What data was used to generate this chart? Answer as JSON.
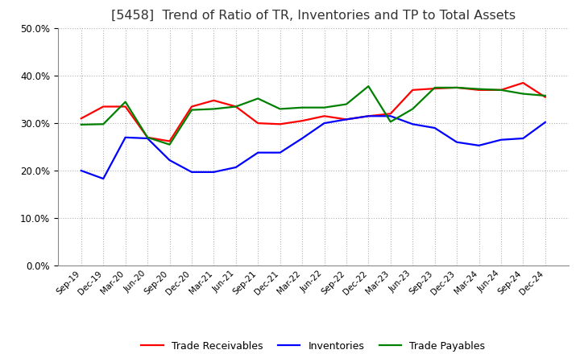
{
  "title": "[5458]  Trend of Ratio of TR, Inventories and TP to Total Assets",
  "labels": [
    "Sep-19",
    "Dec-19",
    "Mar-20",
    "Jun-20",
    "Sep-20",
    "Dec-20",
    "Mar-21",
    "Jun-21",
    "Sep-21",
    "Dec-21",
    "Mar-22",
    "Jun-22",
    "Sep-22",
    "Dec-22",
    "Mar-23",
    "Jun-23",
    "Sep-23",
    "Dec-23",
    "Mar-24",
    "Jun-24",
    "Sep-24",
    "Dec-24"
  ],
  "trade_receivables": [
    0.31,
    0.335,
    0.335,
    0.27,
    0.262,
    0.335,
    0.348,
    0.335,
    0.3,
    0.298,
    0.305,
    0.315,
    0.308,
    0.315,
    0.32,
    0.37,
    0.373,
    0.375,
    0.37,
    0.37,
    0.385,
    0.355
  ],
  "inventories": [
    0.2,
    0.183,
    0.27,
    0.268,
    0.222,
    0.197,
    0.197,
    0.207,
    0.238,
    0.238,
    0.268,
    0.3,
    0.308,
    0.315,
    0.315,
    0.298,
    0.29,
    0.26,
    0.253,
    0.265,
    0.268,
    0.302
  ],
  "trade_payables": [
    0.297,
    0.298,
    0.345,
    0.27,
    0.255,
    0.328,
    0.33,
    0.335,
    0.352,
    0.33,
    0.333,
    0.333,
    0.34,
    0.378,
    0.303,
    0.33,
    0.375,
    0.375,
    0.372,
    0.37,
    0.362,
    0.358
  ],
  "tr_color": "#ff0000",
  "inv_color": "#0000ff",
  "tp_color": "#008000",
  "ylim": [
    0.0,
    0.5
  ],
  "yticks": [
    0.0,
    0.1,
    0.2,
    0.3,
    0.4,
    0.5
  ],
  "background_color": "#ffffff",
  "grid_color": "#aaaaaa",
  "title_fontsize": 11.5
}
